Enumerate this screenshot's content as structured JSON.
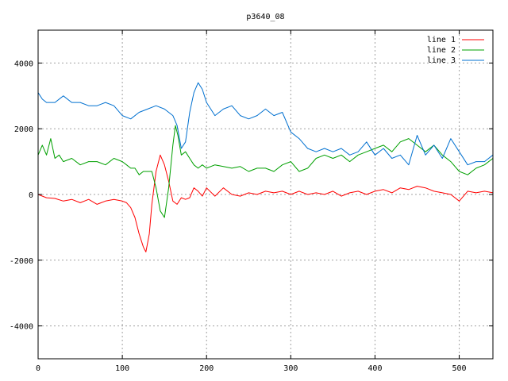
{
  "chart_data": {
    "type": "line",
    "title": "p3640_08",
    "xlabel": "",
    "ylabel": "",
    "xlim": [
      0,
      540
    ],
    "ylim": [
      -5000,
      5000
    ],
    "xticks": [
      0,
      100,
      200,
      300,
      400,
      500
    ],
    "yticks": [
      -4000,
      -2000,
      0,
      2000,
      4000
    ],
    "grid": true,
    "legend_position": "top-right",
    "series": [
      {
        "name": "line 1",
        "color": "#ff0000",
        "x": [
          0,
          10,
          20,
          30,
          40,
          50,
          60,
          70,
          80,
          90,
          100,
          105,
          110,
          115,
          120,
          125,
          128,
          132,
          135,
          140,
          145,
          150,
          155,
          160,
          165,
          170,
          175,
          180,
          185,
          190,
          195,
          200,
          210,
          220,
          230,
          240,
          250,
          260,
          270,
          280,
          290,
          300,
          310,
          320,
          330,
          340,
          350,
          360,
          370,
          380,
          390,
          400,
          410,
          420,
          430,
          440,
          450,
          460,
          470,
          480,
          490,
          500,
          510,
          520,
          530,
          540
        ],
        "y": [
          0,
          -100,
          -120,
          -200,
          -150,
          -250,
          -150,
          -300,
          -200,
          -150,
          -200,
          -250,
          -400,
          -700,
          -1200,
          -1600,
          -1750,
          -1200,
          -300,
          700,
          1200,
          900,
          400,
          -200,
          -300,
          -100,
          -150,
          -100,
          200,
          100,
          -50,
          200,
          -50,
          200,
          0,
          -50,
          50,
          0,
          100,
          50,
          100,
          0,
          100,
          0,
          50,
          0,
          100,
          -50,
          50,
          100,
          0,
          100,
          150,
          50,
          200,
          150,
          250,
          200,
          100,
          50,
          0,
          -200,
          100,
          50,
          100,
          50
        ]
      },
      {
        "name": "line 2",
        "color": "#00a000",
        "x": [
          0,
          5,
          10,
          15,
          20,
          25,
          30,
          40,
          50,
          60,
          70,
          80,
          90,
          100,
          105,
          110,
          115,
          120,
          125,
          130,
          135,
          140,
          145,
          150,
          155,
          160,
          163,
          166,
          170,
          175,
          180,
          185,
          190,
          195,
          200,
          210,
          220,
          230,
          240,
          250,
          260,
          270,
          280,
          290,
          300,
          310,
          320,
          330,
          340,
          350,
          360,
          370,
          380,
          390,
          400,
          410,
          420,
          430,
          440,
          450,
          460,
          470,
          480,
          490,
          500,
          510,
          520,
          530,
          540
        ],
        "y": [
          1200,
          1500,
          1200,
          1700,
          1100,
          1200,
          1000,
          1100,
          900,
          1000,
          1000,
          900,
          1100,
          1000,
          900,
          800,
          800,
          600,
          700,
          700,
          700,
          200,
          -500,
          -700,
          200,
          1500,
          2100,
          1800,
          1200,
          1300,
          1100,
          900,
          800,
          900,
          800,
          900,
          850,
          800,
          850,
          700,
          800,
          800,
          700,
          900,
          1000,
          700,
          800,
          1100,
          1200,
          1100,
          1200,
          1000,
          1200,
          1300,
          1400,
          1500,
          1300,
          1600,
          1700,
          1500,
          1300,
          1500,
          1200,
          1000,
          700,
          600,
          800,
          900,
          1100
        ]
      },
      {
        "name": "line 3",
        "color": "#0070d0",
        "x": [
          0,
          5,
          10,
          20,
          30,
          40,
          50,
          60,
          70,
          80,
          90,
          100,
          110,
          120,
          130,
          140,
          150,
          160,
          165,
          170,
          175,
          180,
          185,
          190,
          195,
          200,
          210,
          220,
          230,
          240,
          250,
          260,
          270,
          280,
          290,
          300,
          310,
          320,
          330,
          340,
          350,
          360,
          370,
          380,
          390,
          400,
          410,
          420,
          430,
          440,
          450,
          460,
          470,
          480,
          490,
          500,
          510,
          520,
          530,
          540
        ],
        "y": [
          3100,
          2900,
          2800,
          2800,
          3000,
          2800,
          2800,
          2700,
          2700,
          2800,
          2700,
          2400,
          2300,
          2500,
          2600,
          2700,
          2600,
          2400,
          2100,
          1400,
          1600,
          2500,
          3100,
          3400,
          3200,
          2800,
          2400,
          2600,
          2700,
          2400,
          2300,
          2400,
          2600,
          2400,
          2500,
          1900,
          1700,
          1400,
          1300,
          1400,
          1300,
          1400,
          1200,
          1300,
          1600,
          1200,
          1400,
          1100,
          1200,
          900,
          1800,
          1200,
          1500,
          1100,
          1700,
          1300,
          900,
          1000,
          1000,
          1200
        ]
      }
    ]
  }
}
